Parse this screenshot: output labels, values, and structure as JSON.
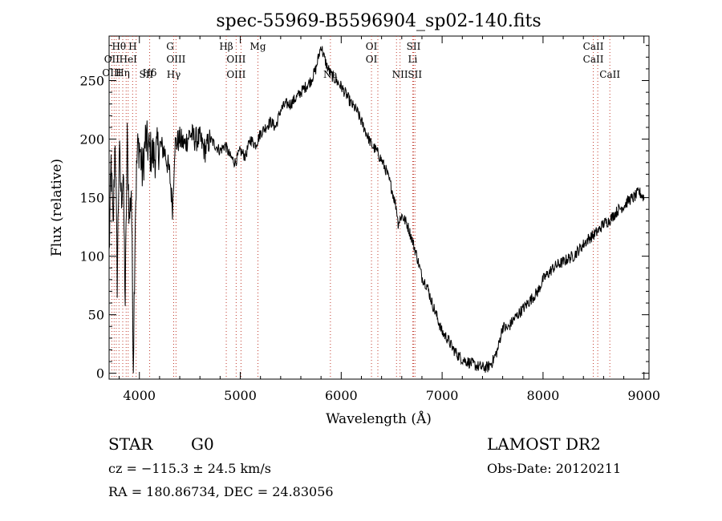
{
  "chart_data": {
    "type": "line",
    "title": "spec-55969-B5596904_sp02-140.fits",
    "xlabel": "Wavelength (Å)",
    "ylabel": "Flux (relative)",
    "xlim": [
      3700,
      9050
    ],
    "ylim": [
      -5,
      288
    ],
    "xticks": [
      4000,
      5000,
      6000,
      7000,
      8000,
      9000
    ],
    "yticks": [
      0,
      50,
      100,
      150,
      200,
      250
    ],
    "grid": false,
    "series": [
      {
        "x": [
          3700,
          3720,
          3740,
          3760,
          3780,
          3800,
          3820,
          3840,
          3860,
          3880,
          3900,
          3920,
          3940,
          3960,
          3980,
          4000,
          4030,
          4060,
          4100,
          4150,
          4200,
          4250,
          4300,
          4330,
          4350,
          4400,
          4450,
          4500,
          4550,
          4600,
          4650,
          4700,
          4750,
          4800,
          4850,
          4900,
          4950,
          5000,
          5050,
          5100,
          5150,
          5200,
          5250,
          5300,
          5350,
          5400,
          5450,
          5500,
          5550,
          5600,
          5650,
          5700,
          5750,
          5800,
          5830,
          5860,
          5900,
          5950,
          6000,
          6050,
          6100,
          6150,
          6200,
          6250,
          6300,
          6350,
          6400,
          6450,
          6500,
          6550,
          6563,
          6600,
          6650,
          6700,
          6750,
          6800,
          6850,
          6900,
          6950,
          7000,
          7050,
          7100,
          7150,
          7200,
          7250,
          7300,
          7350,
          7400,
          7450,
          7500,
          7550,
          7600,
          7650,
          7700,
          7750,
          7800,
          7850,
          7900,
          7950,
          8000,
          8050,
          8100,
          8150,
          8200,
          8250,
          8300,
          8350,
          8400,
          8450,
          8500,
          8550,
          8600,
          8650,
          8700,
          8750,
          8800,
          8850,
          8900,
          8950,
          9000
        ],
        "y": [
          100,
          180,
          120,
          205,
          80,
          190,
          150,
          170,
          60,
          200,
          130,
          160,
          10,
          140,
          190,
          195,
          170,
          200,
          190,
          185,
          195,
          190,
          170,
          140,
          195,
          200,
          195,
          205,
          200,
          200,
          190,
          200,
          195,
          190,
          195,
          185,
          180,
          190,
          185,
          200,
          195,
          205,
          210,
          215,
          210,
          225,
          230,
          230,
          235,
          240,
          245,
          250,
          260,
          280,
          270,
          262,
          255,
          250,
          245,
          238,
          230,
          225,
          215,
          205,
          195,
          190,
          182,
          172,
          158,
          140,
          128,
          135,
          128,
          115,
          100,
          82,
          75,
          60,
          48,
          35,
          30,
          22,
          16,
          12,
          10,
          8,
          6,
          5,
          5,
          10,
          20,
          40,
          38,
          45,
          50,
          55,
          60,
          65,
          70,
          80,
          85,
          90,
          93,
          95,
          98,
          100,
          105,
          110,
          115,
          118,
          122,
          128,
          130,
          135,
          140,
          143,
          148,
          150,
          155,
          150
        ]
      }
    ],
    "line_labels": [
      {
        "text": "Hθ",
        "x": 3798,
        "row": 1
      },
      {
        "text": "H",
        "x": 3933,
        "row": 1
      },
      {
        "text": "G",
        "x": 4305,
        "row": 1
      },
      {
        "text": "Hβ",
        "x": 4861,
        "row": 1
      },
      {
        "text": "Mg",
        "x": 5175,
        "row": 1
      },
      {
        "text": "OI",
        "x": 6300,
        "row": 1
      },
      {
        "text": "SII",
        "x": 6717,
        "row": 1
      },
      {
        "text": "CaII",
        "x": 8498,
        "row": 1
      },
      {
        "text": "OII",
        "x": 3727,
        "row": 2
      },
      {
        "text": "HeI",
        "x": 3889,
        "row": 2
      },
      {
        "text": "OIII",
        "x": 4363,
        "row": 2
      },
      {
        "text": "OIII",
        "x": 4959,
        "row": 2
      },
      {
        "text": "OI",
        "x": 6300,
        "row": 2
      },
      {
        "text": "Li",
        "x": 6708,
        "row": 2
      },
      {
        "text": "CaII",
        "x": 8498,
        "row": 2
      },
      {
        "text": "OIII",
        "x": 3727,
        "row": 3
      },
      {
        "text": "Hη",
        "x": 3835,
        "row": 3
      },
      {
        "text": "Hδ",
        "x": 4102,
        "row": 3
      },
      {
        "text": "SII",
        "x": 4068,
        "row": 4
      },
      {
        "text": "Hγ",
        "x": 4340,
        "row": 4
      },
      {
        "text": "OIII",
        "x": 4959,
        "row": 4
      },
      {
        "text": "Na",
        "x": 5893,
        "row": 4
      },
      {
        "text": "NII",
        "x": 6583,
        "row": 4
      },
      {
        "text": "SII",
        "x": 6731,
        "row": 4
      },
      {
        "text": "CaII",
        "x": 8662,
        "row": 4
      }
    ],
    "line_markers": [
      3727,
      3750,
      3771,
      3798,
      3835,
      3869,
      3889,
      3933,
      3968,
      4102,
      4340,
      4363,
      4861,
      4959,
      5007,
      5175,
      5893,
      6300,
      6363,
      6548,
      6583,
      6708,
      6717,
      6731,
      8498,
      8542,
      8662
    ]
  },
  "info": {
    "obj_type": "STAR",
    "obj_class": "G0",
    "survey": "LAMOST DR2",
    "cz": "cz = −115.3 ± 24.5 km/s",
    "obs_date": "Obs-Date: 20120211",
    "radec": "RA = 180.86734, DEC =  24.83056"
  }
}
